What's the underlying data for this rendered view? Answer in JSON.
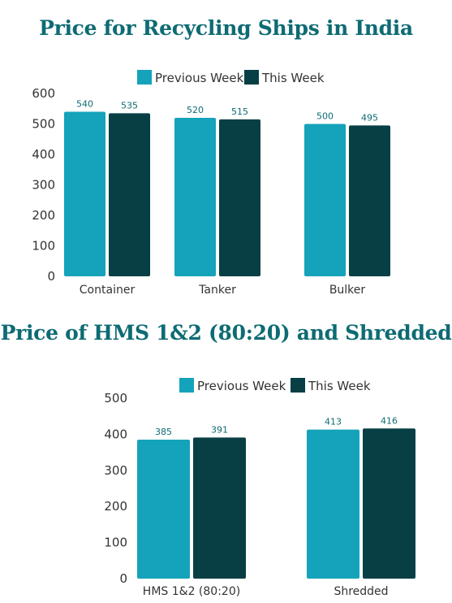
{
  "chart_data": [
    {
      "type": "bar",
      "title": "Price for Recycling Ships in India",
      "categories": [
        "Container",
        "Tanker",
        "Bulker"
      ],
      "series": [
        {
          "name": "Previous Week",
          "color": "#14a3ba",
          "values": [
            540,
            520,
            500
          ]
        },
        {
          "name": "This Week",
          "color": "#073f45",
          "values": [
            535,
            515,
            495
          ]
        }
      ],
      "ylim": [
        0,
        600
      ],
      "yticks": [
        0,
        100,
        200,
        300,
        400,
        500,
        600
      ],
      "legend": "top-center",
      "grid": false
    },
    {
      "type": "bar",
      "title": "Price of HMS 1&2 (80:20) and Shredded",
      "categories": [
        "HMS 1&2 (80:20)",
        "Shredded"
      ],
      "series": [
        {
          "name": "Previous Week",
          "color": "#14a3ba",
          "values": [
            385,
            413
          ]
        },
        {
          "name": "This Week",
          "color": "#073f45",
          "values": [
            391,
            416
          ]
        }
      ],
      "ylim": [
        0,
        500
      ],
      "yticks": [
        0,
        100,
        200,
        300,
        400,
        500
      ],
      "legend": "top-center",
      "grid": false
    }
  ]
}
